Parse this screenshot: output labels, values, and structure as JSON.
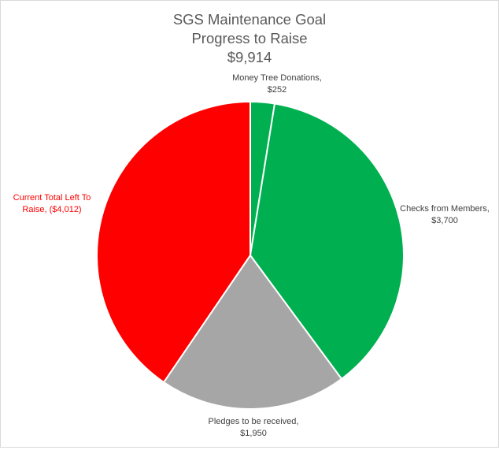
{
  "chart_data": {
    "type": "pie",
    "title_lines": [
      "SGS Maintenance Goal",
      "Progress to Raise",
      "$9,914"
    ],
    "slices": [
      {
        "name": "Money Tree Donations",
        "value": 252,
        "label_lines": [
          "Money Tree Donations,",
          "$252"
        ],
        "color": "#00b050",
        "label_color": "#404040"
      },
      {
        "name": "Checks from Members",
        "value": 3700,
        "label_lines": [
          "Checks from Members,",
          "$3,700"
        ],
        "color": "#00b050",
        "label_color": "#404040"
      },
      {
        "name": "Pledges to be received",
        "value": 1950,
        "label_lines": [
          "Pledges to be received,",
          "$1,950"
        ],
        "color": "#a6a6a6",
        "label_color": "#404040"
      },
      {
        "name": "Current Total Left To Raise",
        "value": 4012,
        "label_lines": [
          "Current Total Left To",
          "Raise, ($4,012)"
        ],
        "color": "#ff0000",
        "label_color": "#ff0000"
      }
    ],
    "legend": "none",
    "slice_border_color": "#ffffff"
  }
}
